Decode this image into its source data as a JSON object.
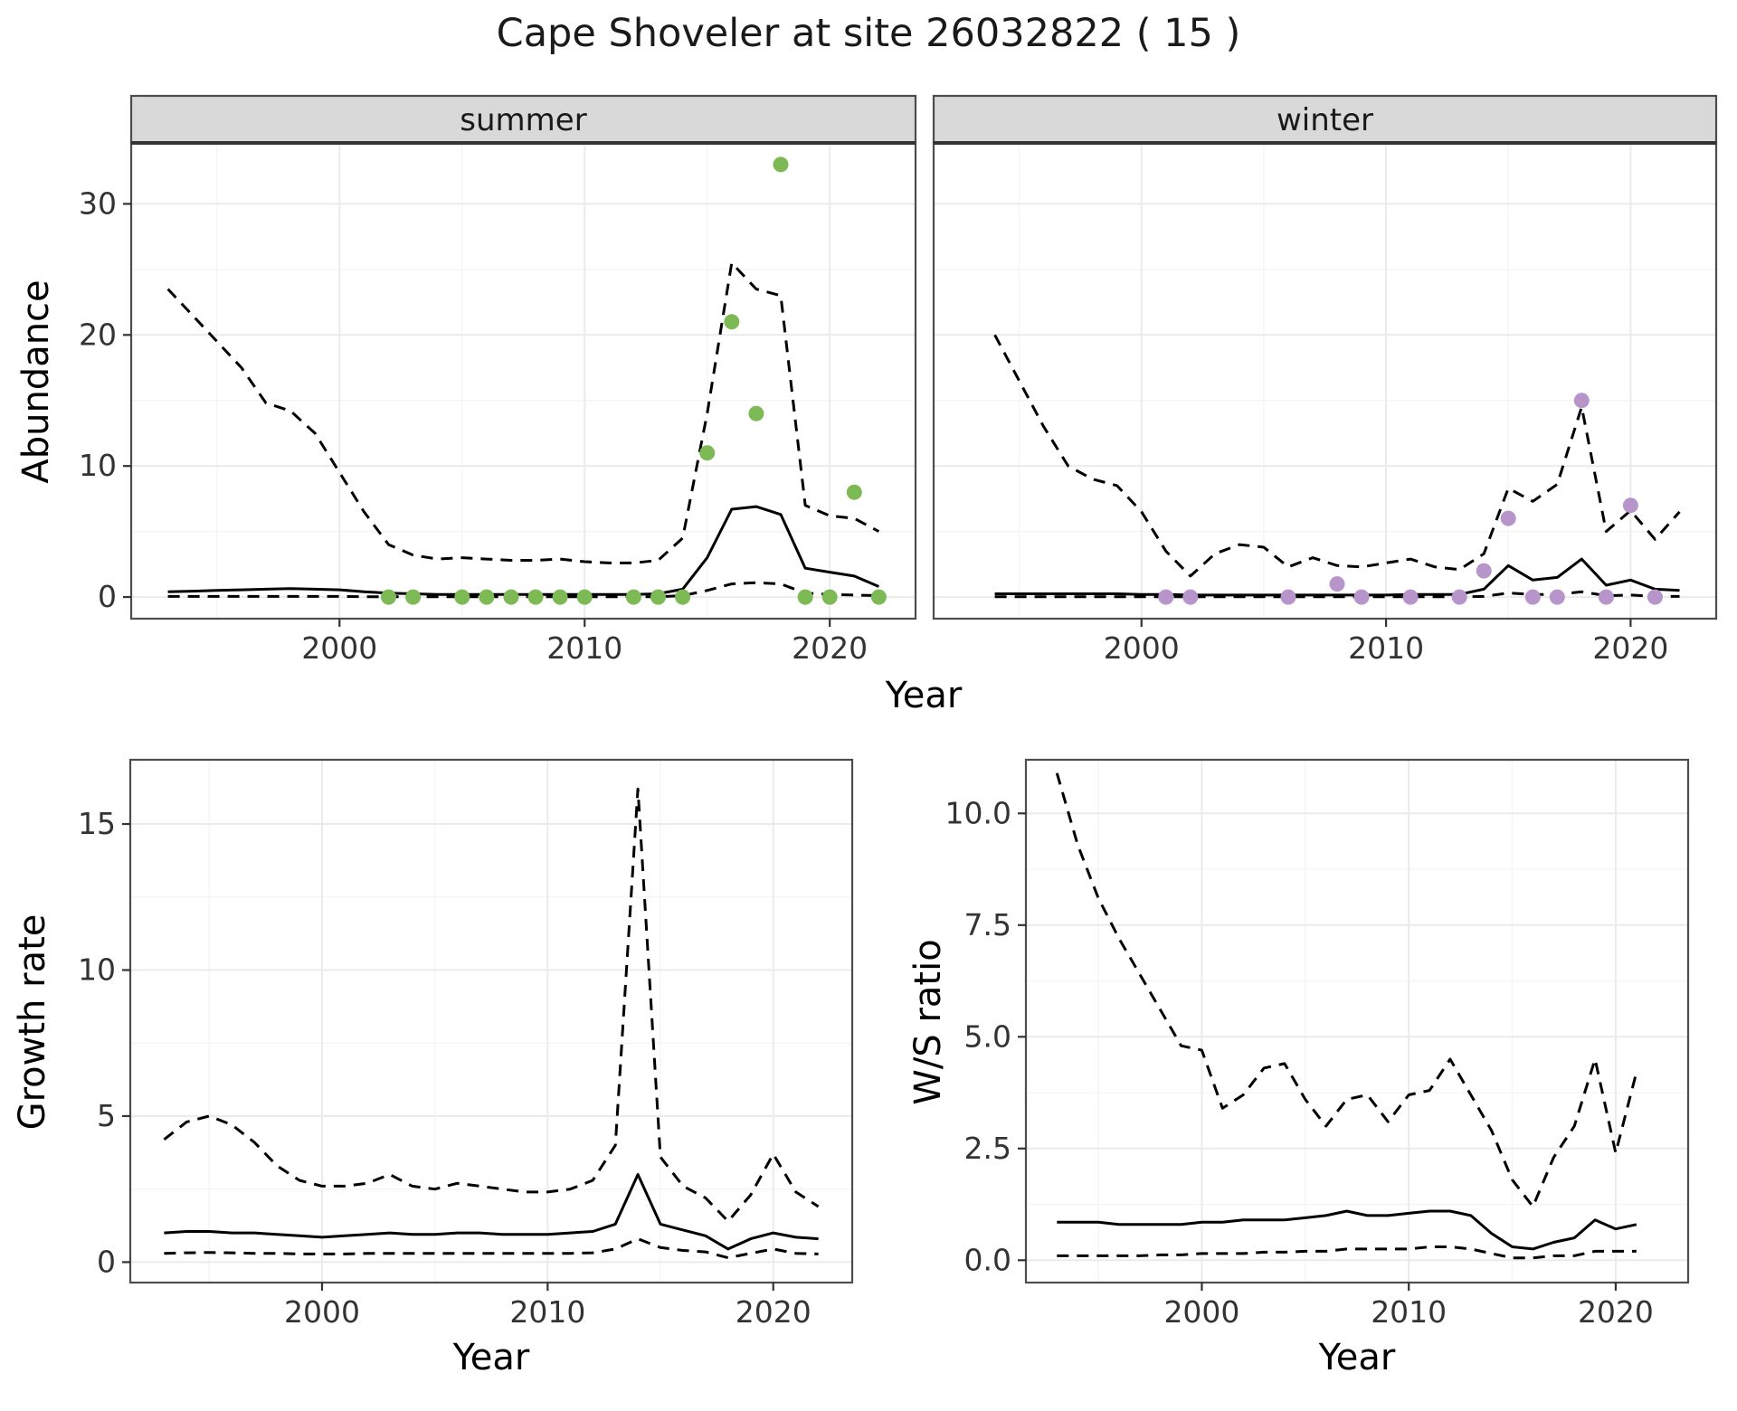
{
  "title": "Cape Shoveler at site 26032822 ( 15 )",
  "axes": {
    "year_label": "Year",
    "abundance_label": "Abundance",
    "growth_label": "Growth rate",
    "ws_label": "W/S ratio"
  },
  "style": {
    "summer_point_color": "#7db954",
    "winter_point_color": "#b795ca",
    "line_color": "#000000",
    "strip_bg": "#d9d9d9",
    "panel_border": "#4d4d4d",
    "grid_major": "#ebebeb",
    "grid_minor": "#f5f5f5",
    "tick_text": "#333333"
  },
  "chart_data": [
    {
      "id": "abundance-summer",
      "type": "line",
      "facet_label": "summer",
      "xlabel": "Year",
      "ylabel": "Abundance",
      "xlim": [
        1991.5,
        2023.5
      ],
      "ylim": [
        -1.65,
        34.65
      ],
      "xticks": [
        2000,
        2010,
        2020
      ],
      "xtick_labels": [
        "2000",
        "2010",
        "2020"
      ],
      "xminor": [
        1995,
        2005,
        2015
      ],
      "yticks": [
        0,
        10,
        20,
        30
      ],
      "ytick_labels": [
        "0",
        "10",
        "20",
        "30"
      ],
      "yminor": [
        5,
        15,
        25
      ],
      "series": [
        {
          "name": "upper-ci",
          "style": "dashed",
          "x": [
            1993,
            1994,
            1995,
            1996,
            1997,
            1998,
            1999,
            2000,
            2001,
            2002,
            2003,
            2004,
            2005,
            2006,
            2007,
            2008,
            2009,
            2010,
            2011,
            2012,
            2013,
            2014,
            2015,
            2016,
            2017,
            2018,
            2019,
            2020,
            2021,
            2022
          ],
          "y": [
            23.5,
            21.5,
            19.5,
            17.5,
            14.8,
            14.2,
            12.5,
            9.5,
            6.5,
            4.0,
            3.2,
            2.9,
            3.0,
            2.9,
            2.8,
            2.8,
            2.9,
            2.7,
            2.6,
            2.6,
            2.8,
            4.5,
            14.0,
            25.5,
            23.5,
            23.0,
            7.0,
            6.2,
            6.0,
            5.0
          ]
        },
        {
          "name": "median",
          "style": "solid",
          "x": [
            1993,
            1994,
            1995,
            1996,
            1997,
            1998,
            1999,
            2000,
            2001,
            2002,
            2003,
            2004,
            2005,
            2006,
            2007,
            2008,
            2009,
            2010,
            2011,
            2012,
            2013,
            2014,
            2015,
            2016,
            2017,
            2018,
            2019,
            2020,
            2021,
            2022
          ],
          "y": [
            0.4,
            0.45,
            0.5,
            0.55,
            0.6,
            0.65,
            0.6,
            0.55,
            0.4,
            0.3,
            0.25,
            0.2,
            0.2,
            0.2,
            0.2,
            0.2,
            0.2,
            0.2,
            0.2,
            0.2,
            0.25,
            0.6,
            3.0,
            6.7,
            6.9,
            6.3,
            2.2,
            1.9,
            1.6,
            0.8
          ]
        },
        {
          "name": "lower-ci",
          "style": "dashed",
          "x": [
            1993,
            1994,
            1995,
            1996,
            1997,
            1998,
            1999,
            2000,
            2001,
            2002,
            2003,
            2004,
            2005,
            2006,
            2007,
            2008,
            2009,
            2010,
            2011,
            2012,
            2013,
            2014,
            2015,
            2016,
            2017,
            2018,
            2019,
            2020,
            2021,
            2022
          ],
          "y": [
            0.05,
            0.05,
            0.05,
            0.05,
            0.05,
            0.05,
            0.05,
            0.05,
            0.03,
            0.03,
            0.02,
            0.02,
            0.02,
            0.02,
            0.02,
            0.02,
            0.02,
            0.02,
            0.02,
            0.02,
            0.03,
            0.1,
            0.5,
            1.0,
            1.1,
            1.0,
            0.3,
            0.2,
            0.15,
            0.1
          ]
        },
        {
          "name": "observed",
          "style": "points",
          "color_key": "summer_point_color",
          "x": [
            2002,
            2003,
            2005,
            2006,
            2007,
            2008,
            2009,
            2010,
            2012,
            2013,
            2014,
            2015,
            2016,
            2017,
            2018,
            2019,
            2020,
            2021,
            2022
          ],
          "y": [
            0,
            0,
            0,
            0,
            0,
            0,
            0,
            0,
            0,
            0,
            0,
            11,
            21,
            14,
            33,
            0,
            0,
            8,
            0
          ]
        }
      ]
    },
    {
      "id": "abundance-winter",
      "type": "line",
      "facet_label": "winter",
      "xlabel": "Year",
      "ylabel": "Abundance",
      "xlim": [
        1991.5,
        2023.5
      ],
      "ylim": [
        -1.65,
        34.65
      ],
      "xticks": [
        2000,
        2010,
        2020
      ],
      "xtick_labels": [
        "2000",
        "2010",
        "2020"
      ],
      "xminor": [
        1995,
        2005,
        2015
      ],
      "yticks": [
        0,
        10,
        20,
        30
      ],
      "ytick_labels": [
        "0",
        "10",
        "20",
        "30"
      ],
      "yminor": [
        5,
        15,
        25
      ],
      "series": [
        {
          "name": "upper-ci",
          "style": "dashed",
          "x": [
            1994,
            1995,
            1996,
            1997,
            1998,
            1999,
            2000,
            2001,
            2002,
            2003,
            2004,
            2005,
            2006,
            2007,
            2008,
            2009,
            2010,
            2011,
            2012,
            2013,
            2014,
            2015,
            2016,
            2017,
            2018,
            2019,
            2020,
            2021,
            2022
          ],
          "y": [
            20.0,
            16.5,
            13.0,
            10.0,
            9.0,
            8.5,
            6.5,
            3.5,
            1.6,
            3.3,
            4.0,
            3.8,
            2.3,
            3.0,
            2.4,
            2.3,
            2.6,
            2.9,
            2.3,
            2.1,
            3.3,
            8.3,
            7.3,
            8.6,
            14.5,
            5.0,
            6.6,
            4.4,
            6.5
          ]
        },
        {
          "name": "median",
          "style": "solid",
          "x": [
            1994,
            1995,
            1996,
            1997,
            1998,
            1999,
            2000,
            2001,
            2002,
            2003,
            2004,
            2005,
            2006,
            2007,
            2008,
            2009,
            2010,
            2011,
            2012,
            2013,
            2014,
            2015,
            2016,
            2017,
            2018,
            2019,
            2020,
            2021,
            2022
          ],
          "y": [
            0.25,
            0.25,
            0.25,
            0.25,
            0.25,
            0.25,
            0.2,
            0.2,
            0.15,
            0.15,
            0.15,
            0.15,
            0.15,
            0.15,
            0.15,
            0.15,
            0.15,
            0.2,
            0.2,
            0.2,
            0.6,
            2.4,
            1.3,
            1.5,
            2.9,
            0.9,
            1.3,
            0.6,
            0.5
          ]
        },
        {
          "name": "lower-ci",
          "style": "dashed",
          "x": [
            1994,
            1995,
            1996,
            1997,
            1998,
            1999,
            2000,
            2001,
            2002,
            2003,
            2004,
            2005,
            2006,
            2007,
            2008,
            2009,
            2010,
            2011,
            2012,
            2013,
            2014,
            2015,
            2016,
            2017,
            2018,
            2019,
            2020,
            2021,
            2022
          ],
          "y": [
            0.02,
            0.02,
            0.02,
            0.02,
            0.02,
            0.02,
            0.02,
            0.02,
            0.02,
            0.02,
            0.02,
            0.02,
            0.02,
            0.02,
            0.02,
            0.02,
            0.02,
            0.02,
            0.02,
            0.02,
            0.05,
            0.3,
            0.2,
            0.2,
            0.4,
            0.1,
            0.15,
            0.05,
            0.05
          ]
        },
        {
          "name": "observed",
          "style": "points",
          "color_key": "winter_point_color",
          "x": [
            2001,
            2002,
            2006,
            2008,
            2009,
            2011,
            2013,
            2014,
            2015,
            2016,
            2017,
            2018,
            2019,
            2020,
            2021
          ],
          "y": [
            0,
            0,
            0,
            1,
            0,
            0,
            0,
            2,
            6,
            0,
            0,
            15,
            0,
            7,
            0
          ]
        }
      ]
    },
    {
      "id": "growth-rate",
      "type": "line",
      "facet_label": null,
      "xlabel": "Year",
      "ylabel": "Growth rate",
      "xlim": [
        1991.5,
        2023.5
      ],
      "ylim": [
        -0.7,
        17.2
      ],
      "xticks": [
        2000,
        2010,
        2020
      ],
      "xtick_labels": [
        "2000",
        "2010",
        "2020"
      ],
      "xminor": [
        1995,
        2005,
        2015
      ],
      "yticks": [
        0,
        5,
        10,
        15
      ],
      "ytick_labels": [
        "0",
        "5",
        "10",
        "15"
      ],
      "yminor": [
        2.5,
        7.5,
        12.5
      ],
      "series": [
        {
          "name": "upper-ci",
          "style": "dashed",
          "x": [
            1993,
            1994,
            1995,
            1996,
            1997,
            1998,
            1999,
            2000,
            2001,
            2002,
            2003,
            2004,
            2005,
            2006,
            2007,
            2008,
            2009,
            2010,
            2011,
            2012,
            2013,
            2014,
            2015,
            2016,
            2017,
            2018,
            2019,
            2020,
            2021,
            2022
          ],
          "y": [
            4.2,
            4.8,
            5.0,
            4.7,
            4.1,
            3.3,
            2.8,
            2.6,
            2.6,
            2.7,
            3.0,
            2.6,
            2.5,
            2.7,
            2.6,
            2.5,
            2.4,
            2.4,
            2.5,
            2.8,
            4.0,
            16.2,
            3.6,
            2.6,
            2.2,
            1.4,
            2.3,
            3.7,
            2.4,
            1.9
          ]
        },
        {
          "name": "median",
          "style": "solid",
          "x": [
            1993,
            1994,
            1995,
            1996,
            1997,
            1998,
            1999,
            2000,
            2001,
            2002,
            2003,
            2004,
            2005,
            2006,
            2007,
            2008,
            2009,
            2010,
            2011,
            2012,
            2013,
            2014,
            2015,
            2016,
            2017,
            2018,
            2019,
            2020,
            2021,
            2022
          ],
          "y": [
            1.0,
            1.05,
            1.05,
            1.0,
            1.0,
            0.95,
            0.9,
            0.85,
            0.9,
            0.95,
            1.0,
            0.95,
            0.95,
            1.0,
            1.0,
            0.95,
            0.95,
            0.95,
            1.0,
            1.05,
            1.3,
            3.0,
            1.3,
            1.1,
            0.9,
            0.45,
            0.8,
            1.0,
            0.85,
            0.8
          ]
        },
        {
          "name": "lower-ci",
          "style": "dashed",
          "x": [
            1993,
            1994,
            1995,
            1996,
            1997,
            1998,
            1999,
            2000,
            2001,
            2002,
            2003,
            2004,
            2005,
            2006,
            2007,
            2008,
            2009,
            2010,
            2011,
            2012,
            2013,
            2014,
            2015,
            2016,
            2017,
            2018,
            2019,
            2020,
            2021,
            2022
          ],
          "y": [
            0.3,
            0.32,
            0.33,
            0.32,
            0.3,
            0.3,
            0.28,
            0.28,
            0.28,
            0.3,
            0.3,
            0.3,
            0.3,
            0.3,
            0.3,
            0.3,
            0.3,
            0.3,
            0.3,
            0.32,
            0.45,
            0.8,
            0.5,
            0.4,
            0.35,
            0.15,
            0.3,
            0.45,
            0.3,
            0.28
          ]
        }
      ]
    },
    {
      "id": "ws-ratio",
      "type": "line",
      "facet_label": null,
      "xlabel": "Year",
      "ylabel": "W/S ratio",
      "xlim": [
        1991.5,
        2023.5
      ],
      "ylim": [
        -0.5,
        11.2
      ],
      "xticks": [
        2000,
        2010,
        2020
      ],
      "xtick_labels": [
        "2000",
        "2010",
        "2020"
      ],
      "xminor": [
        1995,
        2005,
        2015
      ],
      "yticks": [
        0,
        2.5,
        5,
        7.5,
        10
      ],
      "ytick_labels": [
        "0.0",
        "2.5",
        "5.0",
        "7.5",
        "10.0"
      ],
      "yminor": [
        1.25,
        3.75,
        6.25,
        8.75
      ],
      "series": [
        {
          "name": "upper-ci",
          "style": "dashed",
          "x": [
            1993,
            1994,
            1995,
            1996,
            1997,
            1998,
            1999,
            2000,
            2001,
            2002,
            2003,
            2004,
            2005,
            2006,
            2007,
            2008,
            2009,
            2010,
            2011,
            2012,
            2013,
            2014,
            2015,
            2016,
            2017,
            2018,
            2019,
            2020,
            2021
          ],
          "y": [
            10.9,
            9.3,
            8.1,
            7.2,
            6.4,
            5.6,
            4.8,
            4.7,
            3.4,
            3.7,
            4.3,
            4.4,
            3.6,
            3.0,
            3.6,
            3.7,
            3.1,
            3.7,
            3.8,
            4.5,
            3.7,
            2.9,
            1.8,
            1.2,
            2.3,
            3.0,
            4.5,
            2.4,
            4.2
          ]
        },
        {
          "name": "median",
          "style": "solid",
          "x": [
            1993,
            1994,
            1995,
            1996,
            1997,
            1998,
            1999,
            2000,
            2001,
            2002,
            2003,
            2004,
            2005,
            2006,
            2007,
            2008,
            2009,
            2010,
            2011,
            2012,
            2013,
            2014,
            2015,
            2016,
            2017,
            2018,
            2019,
            2020,
            2021
          ],
          "y": [
            0.85,
            0.85,
            0.85,
            0.8,
            0.8,
            0.8,
            0.8,
            0.85,
            0.85,
            0.9,
            0.9,
            0.9,
            0.95,
            1.0,
            1.1,
            1.0,
            1.0,
            1.05,
            1.1,
            1.1,
            1.0,
            0.6,
            0.3,
            0.25,
            0.4,
            0.5,
            0.9,
            0.7,
            0.8
          ]
        },
        {
          "name": "lower-ci",
          "style": "dashed",
          "x": [
            1993,
            1994,
            1995,
            1996,
            1997,
            1998,
            1999,
            2000,
            2001,
            2002,
            2003,
            2004,
            2005,
            2006,
            2007,
            2008,
            2009,
            2010,
            2011,
            2012,
            2013,
            2014,
            2015,
            2016,
            2017,
            2018,
            2019,
            2020,
            2021
          ],
          "y": [
            0.1,
            0.1,
            0.1,
            0.1,
            0.1,
            0.12,
            0.12,
            0.15,
            0.15,
            0.15,
            0.18,
            0.18,
            0.2,
            0.2,
            0.25,
            0.25,
            0.25,
            0.25,
            0.3,
            0.3,
            0.25,
            0.15,
            0.05,
            0.05,
            0.1,
            0.1,
            0.2,
            0.2,
            0.2
          ]
        }
      ]
    }
  ]
}
